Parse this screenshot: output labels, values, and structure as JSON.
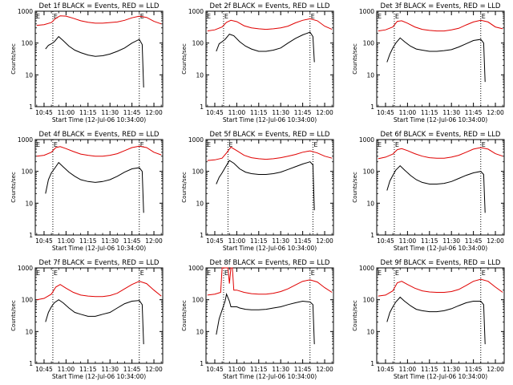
{
  "colors": {
    "events": "#000000",
    "lld": "#e00000",
    "frame": "#000000"
  },
  "shared": {
    "x_tick_labels": [
      "10:45",
      "11:00",
      "11:15",
      "11:30",
      "11:45",
      "12:00"
    ],
    "x_tick_labels_panel9": [
      "10:45",
      "11:00",
      "11:15",
      "11:30",
      "11:45",
      "12:00"
    ],
    "y_tick_labels": [
      "1",
      "10",
      "100",
      "1000"
    ],
    "ylabel": "Counts/sec",
    "xlabel": "Start Time (12-Jul-06 10:34:00)",
    "marker_labels": [
      "E",
      "E"
    ]
  },
  "chart_data": [
    {
      "type": "line",
      "title": "Det 1f BLACK = Events, RED = LLD",
      "xlabel": "Start Time (12-Jul-06 10:34:00)",
      "ylabel": "Counts/sec",
      "yscale": "log",
      "ylim": [
        1,
        1000
      ],
      "x_ticks": [
        "10:45",
        "11:00",
        "11:15",
        "11:30",
        "11:45",
        "12:00"
      ],
      "vlines": [
        "10:51",
        "11:50"
      ],
      "series": [
        {
          "name": "LLD",
          "x": [
            "10:40",
            "10:45",
            "10:50",
            "10:53",
            "10:56",
            "11:00",
            "11:05",
            "11:10",
            "11:15",
            "11:20",
            "11:25",
            "11:30",
            "11:35",
            "11:40",
            "11:45",
            "11:50",
            "11:55",
            "12:00",
            "12:05"
          ],
          "y": [
            360,
            380,
            440,
            600,
            720,
            700,
            600,
            500,
            450,
            420,
            420,
            440,
            460,
            520,
            620,
            700,
            640,
            480,
            400
          ]
        },
        {
          "name": "Events",
          "x": [
            "10:46",
            "10:48",
            "10:50",
            "10:52",
            "10:55",
            "10:58",
            "11:02",
            "11:06",
            "11:10",
            "11:15",
            "11:20",
            "11:25",
            "11:30",
            "11:35",
            "11:40",
            "11:45",
            "11:50",
            "11:52",
            "11:53"
          ],
          "y": [
            65,
            85,
            95,
            110,
            160,
            120,
            80,
            60,
            50,
            42,
            38,
            40,
            45,
            55,
            70,
            100,
            130,
            90,
            4
          ]
        }
      ]
    },
    {
      "type": "line",
      "title": "Det 2f BLACK = Events, RED = LLD",
      "xlabel": "Start Time (12-Jul-06 10:34:00)",
      "ylabel": "Counts/sec",
      "yscale": "log",
      "ylim": [
        1,
        1000
      ],
      "x_ticks": [
        "10:45",
        "11:00",
        "11:15",
        "11:30",
        "11:45",
        "12:00"
      ],
      "vlines": [
        "10:51",
        "11:50"
      ],
      "series": [
        {
          "name": "LLD",
          "x": [
            "10:40",
            "10:45",
            "10:50",
            "10:53",
            "10:56",
            "11:00",
            "11:05",
            "11:10",
            "11:15",
            "11:20",
            "11:25",
            "11:30",
            "11:35",
            "11:40",
            "11:45",
            "11:50",
            "11:55",
            "12:00",
            "12:05"
          ],
          "y": [
            240,
            260,
            320,
            450,
            520,
            470,
            350,
            300,
            280,
            270,
            280,
            300,
            340,
            430,
            520,
            580,
            500,
            340,
            270
          ]
        },
        {
          "name": "Events",
          "x": [
            "10:46",
            "10:48",
            "10:50",
            "10:52",
            "10:55",
            "10:58",
            "11:02",
            "11:06",
            "11:10",
            "11:15",
            "11:20",
            "11:25",
            "11:30",
            "11:35",
            "11:40",
            "11:45",
            "11:50",
            "11:52",
            "11:53"
          ],
          "y": [
            55,
            95,
            110,
            130,
            190,
            170,
            110,
            80,
            65,
            55,
            55,
            60,
            70,
            100,
            140,
            180,
            220,
            160,
            25
          ]
        }
      ]
    },
    {
      "type": "line",
      "title": "Det 3f BLACK = Events, RED = LLD",
      "xlabel": "Start Time (12-Jul-06 10:34:00)",
      "ylabel": "Counts/sec",
      "yscale": "log",
      "ylim": [
        1,
        1000
      ],
      "x_ticks": [
        "10:45",
        "11:00",
        "11:15",
        "11:30",
        "11:45",
        "12:00"
      ],
      "vlines": [
        "10:51",
        "11:50"
      ],
      "series": [
        {
          "name": "LLD",
          "x": [
            "10:40",
            "10:45",
            "10:50",
            "10:53",
            "10:56",
            "11:00",
            "11:05",
            "11:10",
            "11:15",
            "11:20",
            "11:25",
            "11:30",
            "11:35",
            "11:40",
            "11:45",
            "11:50",
            "11:55",
            "12:00",
            "12:05"
          ],
          "y": [
            240,
            260,
            320,
            480,
            500,
            420,
            320,
            270,
            250,
            240,
            240,
            260,
            290,
            370,
            460,
            520,
            460,
            320,
            280
          ]
        },
        {
          "name": "Events",
          "x": [
            "10:46",
            "10:48",
            "10:50",
            "10:52",
            "10:55",
            "10:58",
            "11:02",
            "11:06",
            "11:10",
            "11:15",
            "11:20",
            "11:25",
            "11:30",
            "11:35",
            "11:40",
            "11:45",
            "11:50",
            "11:52",
            "11:53"
          ],
          "y": [
            25,
            45,
            70,
            100,
            145,
            110,
            80,
            65,
            60,
            55,
            55,
            58,
            62,
            75,
            95,
            120,
            130,
            100,
            6
          ]
        }
      ]
    },
    {
      "type": "line",
      "title": "Det 4f BLACK = Events, RED = LLD",
      "xlabel": "Start Time (12-Jul-06 10:34:00)",
      "ylabel": "Counts/sec",
      "yscale": "log",
      "ylim": [
        1,
        1000
      ],
      "x_ticks": [
        "10:45",
        "11:00",
        "11:15",
        "11:30",
        "11:45",
        "12:00"
      ],
      "vlines": [
        "10:51",
        "11:50"
      ],
      "series": [
        {
          "name": "LLD",
          "x": [
            "10:40",
            "10:45",
            "10:50",
            "10:53",
            "10:56",
            "11:00",
            "11:05",
            "11:10",
            "11:15",
            "11:20",
            "11:25",
            "11:30",
            "11:35",
            "11:40",
            "11:45",
            "11:50",
            "11:55",
            "12:00",
            "12:05"
          ],
          "y": [
            300,
            320,
            400,
            560,
            600,
            520,
            420,
            350,
            320,
            300,
            300,
            320,
            360,
            450,
            560,
            620,
            560,
            400,
            330
          ]
        },
        {
          "name": "Events",
          "x": [
            "10:46",
            "10:48",
            "10:50",
            "10:52",
            "10:55",
            "10:58",
            "11:02",
            "11:06",
            "11:10",
            "11:15",
            "11:20",
            "11:25",
            "11:30",
            "11:35",
            "11:40",
            "11:45",
            "11:50",
            "11:52",
            "11:53"
          ],
          "y": [
            20,
            55,
            90,
            120,
            190,
            140,
            95,
            70,
            55,
            48,
            45,
            48,
            55,
            70,
            95,
            120,
            130,
            100,
            5
          ]
        }
      ]
    },
    {
      "type": "line",
      "title": "Det 5f BLACK = Events, RED = LLD",
      "xlabel": "Start Time (12-Jul-06 10:34:00)",
      "ylabel": "Counts/sec",
      "yscale": "log",
      "ylim": [
        1,
        1000
      ],
      "x_ticks": [
        "10:45",
        "11:00",
        "11:15",
        "11:30",
        "11:45",
        "12:00"
      ],
      "vlines": [
        "10:54",
        "11:52"
      ],
      "series": [
        {
          "name": "LLD",
          "x": [
            "10:40",
            "10:45",
            "10:50",
            "10:53",
            "10:56",
            "11:00",
            "11:05",
            "11:10",
            "11:15",
            "11:20",
            "11:25",
            "11:30",
            "11:35",
            "11:40",
            "11:45",
            "11:50",
            "11:55",
            "12:00",
            "12:05"
          ],
          "y": [
            220,
            230,
            260,
            380,
            580,
            450,
            320,
            270,
            250,
            240,
            250,
            270,
            300,
            340,
            400,
            440,
            380,
            300,
            260
          ]
        },
        {
          "name": "Events",
          "x": [
            "10:46",
            "10:48",
            "10:50",
            "10:52",
            "10:55",
            "10:58",
            "11:02",
            "11:06",
            "11:10",
            "11:15",
            "11:20",
            "11:25",
            "11:30",
            "11:35",
            "11:40",
            "11:45",
            "11:50",
            "11:52",
            "11:53"
          ],
          "y": [
            40,
            65,
            90,
            130,
            220,
            180,
            120,
            95,
            85,
            80,
            80,
            85,
            95,
            115,
            140,
            170,
            200,
            160,
            6
          ]
        }
      ]
    },
    {
      "type": "line",
      "title": "Det 6f BLACK = Events, RED = LLD",
      "xlabel": "Start Time (12-Jul-06 10:34:00)",
      "ylabel": "Counts/sec",
      "yscale": "log",
      "ylim": [
        1,
        1000
      ],
      "x_ticks": [
        "10:45",
        "11:00",
        "11:15",
        "11:30",
        "11:45",
        "12:00"
      ],
      "vlines": [
        "10:51",
        "11:50"
      ],
      "series": [
        {
          "name": "LLD",
          "x": [
            "10:40",
            "10:45",
            "10:50",
            "10:53",
            "10:56",
            "11:00",
            "11:05",
            "11:10",
            "11:15",
            "11:20",
            "11:25",
            "11:30",
            "11:35",
            "11:40",
            "11:45",
            "11:50",
            "11:55",
            "12:00",
            "12:05"
          ],
          "y": [
            250,
            280,
            350,
            480,
            520,
            450,
            360,
            300,
            270,
            260,
            260,
            280,
            320,
            400,
            500,
            560,
            500,
            360,
            300
          ]
        },
        {
          "name": "Events",
          "x": [
            "10:46",
            "10:48",
            "10:50",
            "10:52",
            "10:55",
            "10:58",
            "11:02",
            "11:06",
            "11:10",
            "11:15",
            "11:20",
            "11:25",
            "11:30",
            "11:35",
            "11:40",
            "11:45",
            "11:50",
            "11:52",
            "11:53"
          ],
          "y": [
            25,
            50,
            75,
            110,
            150,
            110,
            75,
            55,
            45,
            40,
            40,
            42,
            48,
            60,
            75,
            90,
            100,
            80,
            5
          ]
        }
      ]
    },
    {
      "type": "line",
      "title": "Det 7f BLACK = Events, RED = LLD",
      "xlabel": "Start Time (12-Jul-06 10:34:00)",
      "ylabel": "Counts/sec",
      "yscale": "log",
      "ylim": [
        1,
        1000
      ],
      "x_ticks": [
        "10:45",
        "11:00",
        "11:15",
        "11:30",
        "11:45",
        "12:00"
      ],
      "vlines": [
        "10:51",
        "11:50"
      ],
      "series": [
        {
          "name": "LLD",
          "x": [
            "10:40",
            "10:45",
            "10:50",
            "10:53",
            "10:56",
            "11:00",
            "11:05",
            "11:10",
            "11:15",
            "11:20",
            "11:25",
            "11:30",
            "11:35",
            "11:40",
            "11:45",
            "11:50",
            "11:55",
            "12:00",
            "12:05"
          ],
          "y": [
            100,
            110,
            150,
            250,
            300,
            230,
            170,
            140,
            130,
            125,
            125,
            135,
            160,
            220,
            300,
            380,
            320,
            200,
            130
          ]
        },
        {
          "name": "Events",
          "x": [
            "10:46",
            "10:48",
            "10:50",
            "10:52",
            "10:55",
            "10:58",
            "11:02",
            "11:06",
            "11:10",
            "11:15",
            "11:20",
            "11:25",
            "11:30",
            "11:35",
            "11:40",
            "11:45",
            "11:50",
            "11:52",
            "11:53"
          ],
          "y": [
            20,
            40,
            60,
            80,
            100,
            80,
            55,
            40,
            35,
            30,
            30,
            35,
            40,
            55,
            75,
            90,
            95,
            70,
            4
          ]
        }
      ]
    },
    {
      "type": "line",
      "title": "Det 8f BLACK = Events, RED = LLD",
      "xlabel": "Start Time (12-Jul-06 10:34:00)",
      "ylabel": "Counts/sec",
      "yscale": "log",
      "ylim": [
        1,
        1000
      ],
      "x_ticks": [
        "10:45",
        "11:00",
        "11:15",
        "11:30",
        "11:45",
        "12:00"
      ],
      "vlines": [
        "10:51",
        "11:50"
      ],
      "series": [
        {
          "name": "LLD",
          "x": [
            "10:40",
            "10:45",
            "10:49",
            "10:50",
            "10:51",
            "10:54",
            "10:55",
            "10:56",
            "10:57",
            "10:58",
            "11:00",
            "11:05",
            "11:10",
            "11:15",
            "11:20",
            "11:25",
            "11:30",
            "11:35",
            "11:40",
            "11:45",
            "11:50",
            "11:55",
            "12:00",
            "12:05"
          ],
          "y": [
            140,
            150,
            170,
            1000,
            1000,
            1000,
            320,
            1000,
            1000,
            200,
            200,
            170,
            155,
            150,
            150,
            160,
            180,
            220,
            290,
            380,
            420,
            360,
            240,
            170
          ]
        },
        {
          "name": "Events",
          "x": [
            "10:46",
            "10:48",
            "10:49",
            "10:52",
            "10:53",
            "10:55",
            "10:56",
            "11:00",
            "11:02",
            "11:06",
            "11:10",
            "11:15",
            "11:20",
            "11:25",
            "11:30",
            "11:35",
            "11:40",
            "11:45",
            "11:50",
            "11:52",
            "11:53"
          ],
          "y": [
            8,
            25,
            35,
            90,
            150,
            90,
            60,
            60,
            55,
            50,
            48,
            48,
            50,
            55,
            60,
            70,
            80,
            90,
            85,
            70,
            4
          ]
        }
      ]
    },
    {
      "type": "line",
      "title": "Det 9f BLACK = Events, RED = LLD",
      "xlabel": "Start Time (12-Jul-06 10:34:00)",
      "ylabel": "Counts/sec",
      "yscale": "log",
      "ylim": [
        1,
        1000
      ],
      "x_ticks": [
        "10:45",
        "11:00",
        "11:15",
        "11:30",
        "11:45",
        "12:00"
      ],
      "vlines": [
        "10:51",
        "11:50"
      ],
      "series": [
        {
          "name": "LLD",
          "x": [
            "10:40",
            "10:45",
            "10:50",
            "10:53",
            "10:56",
            "11:00",
            "11:05",
            "11:10",
            "11:15",
            "11:20",
            "11:25",
            "11:30",
            "11:35",
            "11:40",
            "11:45",
            "11:50",
            "11:55",
            "12:00",
            "12:05"
          ],
          "y": [
            130,
            140,
            190,
            340,
            380,
            300,
            230,
            190,
            175,
            170,
            170,
            180,
            210,
            280,
            380,
            440,
            380,
            250,
            170
          ]
        },
        {
          "name": "Events",
          "x": [
            "10:46",
            "10:48",
            "10:50",
            "10:52",
            "10:55",
            "10:58",
            "11:02",
            "11:06",
            "11:10",
            "11:15",
            "11:20",
            "11:25",
            "11:30",
            "11:35",
            "11:40",
            "11:45",
            "11:50",
            "11:52",
            "11:53"
          ],
          "y": [
            20,
            40,
            60,
            85,
            120,
            90,
            65,
            50,
            45,
            42,
            42,
            45,
            52,
            65,
            80,
            90,
            90,
            70,
            4
          ]
        }
      ]
    }
  ]
}
